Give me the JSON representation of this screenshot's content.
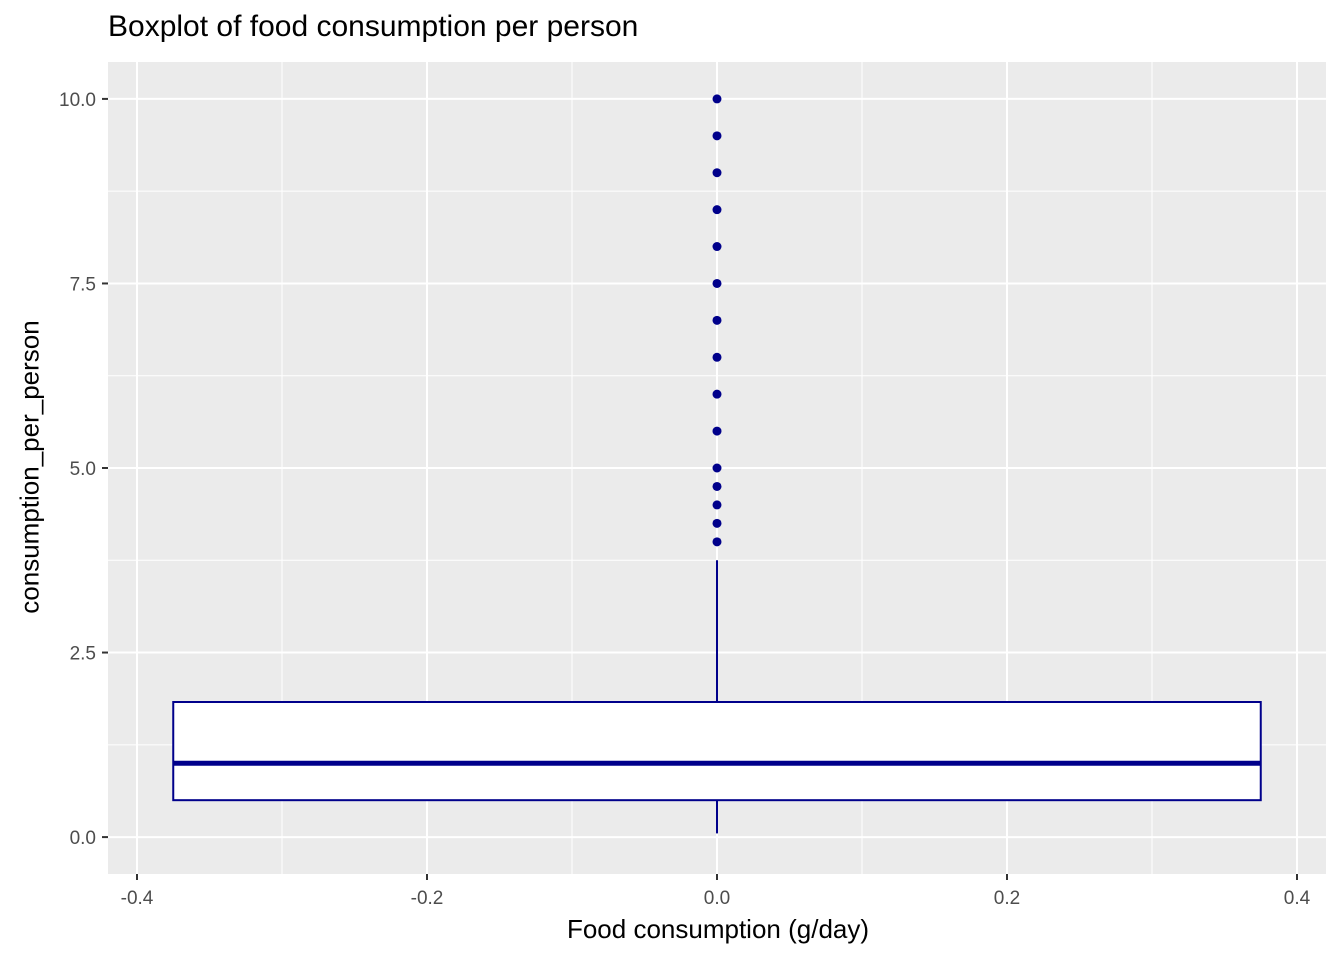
{
  "chart_data": {
    "type": "boxplot",
    "title": "Boxplot of food consumption per person",
    "xlabel": "Food consumption (g/day)",
    "ylabel": "consumption_per_person",
    "xlim": [
      -0.42,
      0.42
    ],
    "ylim": [
      -0.5,
      10.5
    ],
    "x_ticks": [
      -0.4,
      -0.2,
      0.0,
      0.2,
      0.4
    ],
    "x_tick_labels": [
      "-0.4",
      "-0.2",
      "0.0",
      "0.2",
      "0.4"
    ],
    "y_ticks": [
      0.0,
      2.5,
      5.0,
      7.5,
      10.0
    ],
    "y_tick_labels": [
      "0.0",
      "2.5",
      "5.0",
      "7.5",
      "10.0"
    ],
    "grid": true,
    "box": {
      "x_center": 0.0,
      "x_range": [
        -0.375,
        0.375
      ],
      "q1": 0.5,
      "median": 1.0,
      "q3": 1.83,
      "whisker_low": 0.05,
      "whisker_high": 3.75
    },
    "outliers": [
      4.0,
      4.25,
      4.5,
      4.75,
      5.0,
      5.5,
      6.0,
      6.5,
      7.0,
      7.5,
      8.0,
      8.5,
      9.0,
      9.5,
      10.0
    ],
    "colors": {
      "box_line": "#00008b",
      "box_fill": "#ffffff",
      "outlier": "#00008b",
      "panel_bg": "#ebebeb",
      "grid": "#ffffff"
    }
  }
}
